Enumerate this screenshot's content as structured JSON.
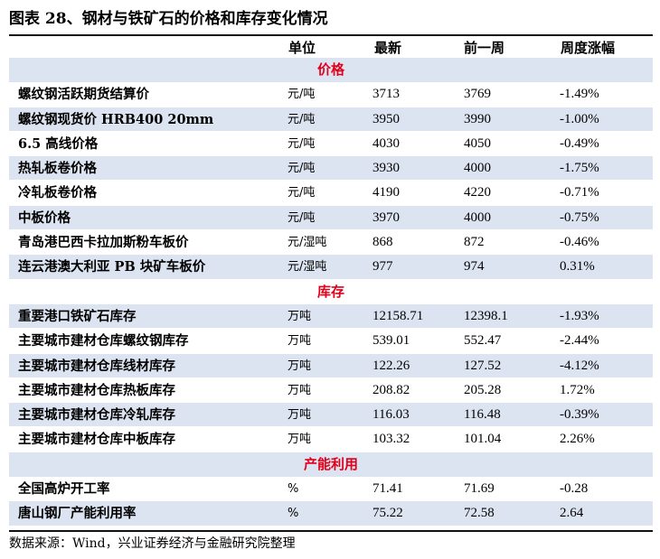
{
  "title": "图表 28、钢材与铁矿石的价格和库存变化情况",
  "headers": {
    "unit": "单位",
    "latest": "最新",
    "prev": "前一周",
    "chg": "周度涨幅"
  },
  "sections": [
    {
      "label": "价格",
      "rows": [
        {
          "name": "螺纹钢活跃期货结算价",
          "unit": "元/吨",
          "latest": "3713",
          "prev": "3769",
          "chg": "-1.49%"
        },
        {
          "name": "螺纹钢现货价 HRB400 20mm",
          "unit": "元/吨",
          "latest": "3950",
          "prev": "3990",
          "chg": "-1.00%"
        },
        {
          "name": "6.5 高线价格",
          "unit": "元/吨",
          "latest": "4030",
          "prev": "4050",
          "chg": "-0.49%"
        },
        {
          "name": "热轧板卷价格",
          "unit": "元/吨",
          "latest": "3930",
          "prev": "4000",
          "chg": "-1.75%"
        },
        {
          "name": "冷轧板卷价格",
          "unit": "元/吨",
          "latest": "4190",
          "prev": "4220",
          "chg": "-0.71%"
        },
        {
          "name": "中板价格",
          "unit": "元/吨",
          "latest": "3970",
          "prev": "4000",
          "chg": "-0.75%"
        },
        {
          "name": "青岛港巴西卡拉加斯粉车板价",
          "unit": "元/湿吨",
          "latest": "868",
          "prev": "872",
          "chg": "-0.46%"
        },
        {
          "name": "连云港澳大利亚 PB 块矿车板价",
          "unit": "元/湿吨",
          "latest": "977",
          "prev": "974",
          "chg": "0.31%"
        }
      ]
    },
    {
      "label": "库存",
      "rows": [
        {
          "name": "重要港口铁矿石库存",
          "unit": "万吨",
          "latest": "12158.71",
          "prev": "12398.1",
          "chg": "-1.93%"
        },
        {
          "name": "主要城市建材仓库螺纹钢库存",
          "unit": "万吨",
          "latest": "539.01",
          "prev": "552.47",
          "chg": "-2.44%"
        },
        {
          "name": "主要城市建材仓库线材库存",
          "unit": "万吨",
          "latest": "122.26",
          "prev": "127.52",
          "chg": "-4.12%"
        },
        {
          "name": "主要城市建材仓库热板库存",
          "unit": "万吨",
          "latest": "208.82",
          "prev": "205.28",
          "chg": "1.72%"
        },
        {
          "name": "主要城市建材仓库冷轧库存",
          "unit": "万吨",
          "latest": "116.03",
          "prev": "116.48",
          "chg": "-0.39%"
        },
        {
          "name": "主要城市建材仓库中板库存",
          "unit": "万吨",
          "latest": "103.32",
          "prev": "101.04",
          "chg": "2.26%"
        }
      ]
    },
    {
      "label": "产能利用",
      "rows": [
        {
          "name": "全国高炉开工率",
          "unit": "%",
          "latest": "71.41",
          "prev": "71.69",
          "chg": "-0.28"
        },
        {
          "name": "唐山钢厂产能利用率",
          "unit": "%",
          "latest": "75.22",
          "prev": "72.58",
          "chg": "2.64"
        }
      ]
    }
  ],
  "source": "数据来源：Wind，兴业证券经济与金融研究院整理",
  "colors": {
    "row_tint": "#dde4f1",
    "section_label": "#e0001b"
  }
}
